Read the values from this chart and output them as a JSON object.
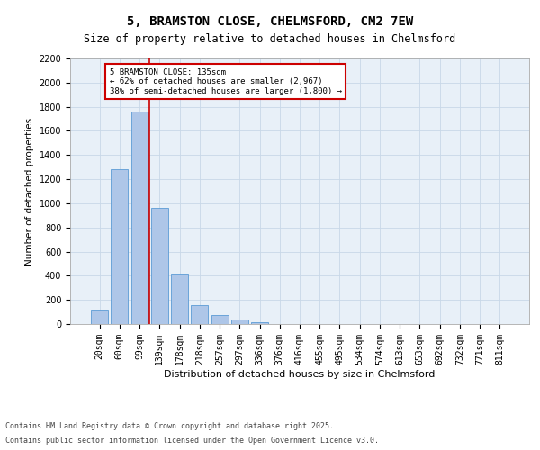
{
  "title1": "5, BRAMSTON CLOSE, CHELMSFORD, CM2 7EW",
  "title2": "Size of property relative to detached houses in Chelmsford",
  "xlabel": "Distribution of detached houses by size in Chelmsford",
  "ylabel": "Number of detached properties",
  "categories": [
    "20sqm",
    "60sqm",
    "99sqm",
    "139sqm",
    "178sqm",
    "218sqm",
    "257sqm",
    "297sqm",
    "336sqm",
    "376sqm",
    "416sqm",
    "455sqm",
    "495sqm",
    "534sqm",
    "574sqm",
    "613sqm",
    "653sqm",
    "692sqm",
    "732sqm",
    "771sqm",
    "811sqm"
  ],
  "values": [
    120,
    1280,
    1760,
    960,
    420,
    155,
    75,
    35,
    18,
    0,
    0,
    0,
    0,
    0,
    0,
    0,
    0,
    0,
    0,
    0,
    0
  ],
  "bar_color": "#aec6e8",
  "bar_edge_color": "#5b9bd5",
  "vline_color": "#cc0000",
  "annotation_text": "5 BRAMSTON CLOSE: 135sqm\n← 62% of detached houses are smaller (2,967)\n38% of semi-detached houses are larger (1,800) →",
  "annotation_box_color": "#cc0000",
  "ylim": [
    0,
    2200
  ],
  "yticks": [
    0,
    200,
    400,
    600,
    800,
    1000,
    1200,
    1400,
    1600,
    1800,
    2000,
    2200
  ],
  "grid_color": "#c8d8e8",
  "background_color": "#e8f0f8",
  "footer1": "Contains HM Land Registry data © Crown copyright and database right 2025.",
  "footer2": "Contains public sector information licensed under the Open Government Licence v3.0.",
  "title1_fontsize": 10,
  "title2_fontsize": 8.5,
  "xlabel_fontsize": 8,
  "ylabel_fontsize": 7.5,
  "tick_fontsize": 7,
  "footer_fontsize": 6
}
